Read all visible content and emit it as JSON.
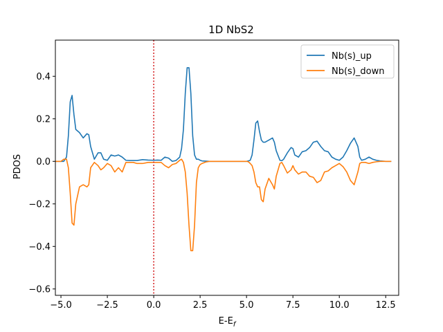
{
  "chart_data": {
    "type": "line",
    "title": "1D NbS2",
    "xlabel": "E-E",
    "xlabel_sub": "f",
    "ylabel": "PDOS",
    "xlim": [
      -5.3,
      13.2
    ],
    "ylim": [
      -0.63,
      0.57
    ],
    "xticks": [
      -5.0,
      -2.5,
      0.0,
      2.5,
      5.0,
      7.5,
      10.0,
      12.5
    ],
    "xtick_labels": [
      "−5.0",
      "−2.5",
      "0.0",
      "2.5",
      "5.0",
      "7.5",
      "10.0",
      "12.5"
    ],
    "yticks": [
      -0.6,
      -0.4,
      -0.2,
      0.0,
      0.2,
      0.4
    ],
    "ytick_labels": [
      "−0.6",
      "−0.4",
      "−0.2",
      "0.0",
      "0.2",
      "0.4"
    ],
    "grid": false,
    "legend_position": "top-right",
    "vline": {
      "x": 0.0,
      "color": "#d62728",
      "style": "dotted"
    },
    "series": [
      {
        "name": "Nb(s)_up",
        "color": "#1f77b4",
        "x": [
          -5.5,
          -5.0,
          -4.85,
          -4.7,
          -4.6,
          -4.5,
          -4.4,
          -4.3,
          -4.2,
          -4.0,
          -3.8,
          -3.6,
          -3.5,
          -3.4,
          -3.2,
          -3.0,
          -2.85,
          -2.7,
          -2.5,
          -2.3,
          -2.1,
          -1.9,
          -1.7,
          -1.5,
          -1.3,
          -1.1,
          -0.9,
          -0.6,
          -0.3,
          0.0,
          0.2,
          0.4,
          0.6,
          0.8,
          1.0,
          1.2,
          1.4,
          1.5,
          1.6,
          1.7,
          1.8,
          1.9,
          2.0,
          2.1,
          2.2,
          2.3,
          2.4,
          2.5,
          2.6,
          2.8,
          3.0,
          3.5,
          4.0,
          4.5,
          5.0,
          5.1,
          5.2,
          5.3,
          5.4,
          5.5,
          5.6,
          5.7,
          5.8,
          5.9,
          6.0,
          6.2,
          6.4,
          6.5,
          6.6,
          6.8,
          6.9,
          7.0,
          7.2,
          7.4,
          7.5,
          7.6,
          7.8,
          8.0,
          8.2,
          8.4,
          8.6,
          8.8,
          9.0,
          9.2,
          9.4,
          9.6,
          9.8,
          10.0,
          10.2,
          10.4,
          10.6,
          10.8,
          11.0,
          11.1,
          11.2,
          11.4,
          11.6,
          11.8,
          12.0,
          12.2,
          12.5,
          12.8
        ],
        "y": [
          0.0,
          0.0,
          0.0,
          0.02,
          0.12,
          0.28,
          0.31,
          0.22,
          0.15,
          0.135,
          0.11,
          0.13,
          0.125,
          0.07,
          0.01,
          0.04,
          0.04,
          0.01,
          0.005,
          0.03,
          0.025,
          0.03,
          0.02,
          0.005,
          0.004,
          0.004,
          0.004,
          0.008,
          0.006,
          0.005,
          0.006,
          0.005,
          0.02,
          0.015,
          0.0,
          0.004,
          0.02,
          0.06,
          0.15,
          0.32,
          0.44,
          0.44,
          0.32,
          0.12,
          0.03,
          0.01,
          0.01,
          0.005,
          0.002,
          0.001,
          0.0,
          0.0,
          0.0,
          0.0,
          0.0,
          0.002,
          0.005,
          0.03,
          0.1,
          0.18,
          0.19,
          0.14,
          0.1,
          0.09,
          0.09,
          0.1,
          0.11,
          0.09,
          0.05,
          0.005,
          0.003,
          0.01,
          0.04,
          0.065,
          0.06,
          0.03,
          0.02,
          0.045,
          0.05,
          0.065,
          0.09,
          0.095,
          0.07,
          0.05,
          0.045,
          0.02,
          0.01,
          0.005,
          0.02,
          0.05,
          0.085,
          0.11,
          0.07,
          0.02,
          0.005,
          0.01,
          0.02,
          0.01,
          0.005,
          0.002,
          0.0,
          0.0
        ]
      },
      {
        "name": "Nb(s)_down",
        "color": "#ff7f0e",
        "x": [
          -5.5,
          -5.0,
          -4.85,
          -4.7,
          -4.6,
          -4.5,
          -4.4,
          -4.3,
          -4.2,
          -4.0,
          -3.8,
          -3.6,
          -3.5,
          -3.4,
          -3.2,
          -3.0,
          -2.85,
          -2.7,
          -2.5,
          -2.3,
          -2.1,
          -1.9,
          -1.7,
          -1.5,
          -1.3,
          -1.1,
          -0.9,
          -0.6,
          -0.3,
          0.0,
          0.2,
          0.4,
          0.6,
          0.8,
          1.0,
          1.2,
          1.4,
          1.5,
          1.6,
          1.7,
          1.8,
          1.9,
          2.0,
          2.1,
          2.2,
          2.3,
          2.4,
          2.5,
          2.6,
          2.8,
          3.0,
          3.5,
          4.0,
          4.5,
          5.0,
          5.1,
          5.2,
          5.3,
          5.4,
          5.5,
          5.6,
          5.7,
          5.8,
          5.9,
          6.0,
          6.2,
          6.4,
          6.5,
          6.6,
          6.8,
          6.9,
          7.0,
          7.2,
          7.4,
          7.5,
          7.6,
          7.8,
          8.0,
          8.2,
          8.4,
          8.6,
          8.8,
          9.0,
          9.2,
          9.4,
          9.6,
          9.8,
          10.0,
          10.2,
          10.4,
          10.6,
          10.8,
          11.0,
          11.1,
          11.2,
          11.4,
          11.6,
          11.8,
          12.0,
          12.2,
          12.5,
          12.8
        ],
        "y": [
          0.0,
          0.0,
          0.01,
          0.01,
          -0.03,
          -0.15,
          -0.29,
          -0.3,
          -0.2,
          -0.12,
          -0.11,
          -0.12,
          -0.11,
          -0.03,
          -0.005,
          -0.02,
          -0.04,
          -0.03,
          -0.01,
          -0.02,
          -0.05,
          -0.03,
          -0.05,
          -0.005,
          -0.005,
          -0.005,
          -0.01,
          -0.01,
          -0.005,
          -0.005,
          -0.005,
          -0.005,
          -0.02,
          -0.03,
          -0.015,
          -0.01,
          0.005,
          0.01,
          -0.005,
          -0.05,
          -0.15,
          -0.3,
          -0.42,
          -0.42,
          -0.3,
          -0.1,
          -0.03,
          -0.015,
          -0.01,
          -0.003,
          0.0,
          0.0,
          0.0,
          0.0,
          0.0,
          -0.002,
          -0.01,
          -0.02,
          -0.05,
          -0.1,
          -0.12,
          -0.12,
          -0.18,
          -0.19,
          -0.13,
          -0.08,
          -0.11,
          -0.13,
          -0.07,
          -0.01,
          -0.005,
          -0.02,
          -0.055,
          -0.04,
          -0.02,
          -0.04,
          -0.06,
          -0.05,
          -0.05,
          -0.07,
          -0.075,
          -0.1,
          -0.09,
          -0.05,
          -0.045,
          -0.03,
          -0.02,
          -0.01,
          -0.025,
          -0.05,
          -0.09,
          -0.11,
          -0.05,
          -0.01,
          -0.005,
          -0.005,
          -0.01,
          -0.005,
          -0.002,
          0.0,
          0.0,
          0.0
        ]
      }
    ]
  }
}
